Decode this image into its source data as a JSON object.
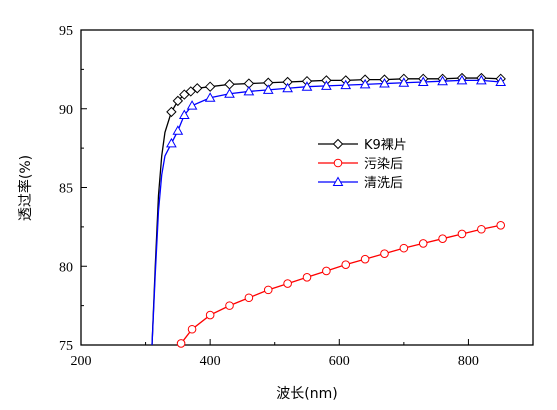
{
  "chart_data": {
    "type": "line",
    "xlabel": "波长(nm)",
    "ylabel": "透过率(%)",
    "xlim": [
      200,
      900
    ],
    "ylim": [
      75,
      95
    ],
    "xticks": [
      200,
      400,
      600,
      800
    ],
    "yticks": [
      75,
      80,
      85,
      90,
      95
    ],
    "legend_position": "center-right",
    "grid": false,
    "series": [
      {
        "name": "K9裸片",
        "color": "#000000",
        "marker": "diamond",
        "x": [
          310,
          315,
          320,
          325,
          330,
          340,
          350,
          360,
          370,
          380,
          400,
          430,
          460,
          490,
          520,
          550,
          580,
          610,
          640,
          670,
          700,
          730,
          760,
          790,
          820,
          850
        ],
        "y": [
          75.0,
          80.0,
          84.5,
          87.0,
          88.5,
          89.8,
          90.5,
          90.9,
          91.1,
          91.3,
          91.4,
          91.55,
          91.6,
          91.65,
          91.7,
          91.75,
          91.8,
          91.8,
          91.85,
          91.85,
          91.9,
          91.9,
          91.9,
          91.95,
          91.95,
          91.9
        ]
      },
      {
        "name": "污染后",
        "color": "#ff0000",
        "marker": "circle",
        "x": [
          355,
          372,
          400,
          430,
          460,
          490,
          520,
          550,
          580,
          610,
          640,
          670,
          700,
          730,
          760,
          790,
          820,
          850
        ],
        "y": [
          75.1,
          76.0,
          76.9,
          77.5,
          78.0,
          78.5,
          78.9,
          79.3,
          79.7,
          80.1,
          80.45,
          80.8,
          81.15,
          81.45,
          81.75,
          82.05,
          82.35,
          82.6
        ]
      },
      {
        "name": "清洗后",
        "color": "#0000ff",
        "marker": "triangle",
        "x": [
          310,
          315,
          320,
          325,
          330,
          340,
          350,
          360,
          372,
          400,
          430,
          460,
          490,
          520,
          550,
          580,
          610,
          640,
          670,
          700,
          730,
          760,
          790,
          820,
          850
        ],
        "y": [
          75.0,
          79.5,
          83.5,
          85.8,
          87.0,
          87.8,
          88.6,
          89.6,
          90.2,
          90.7,
          90.95,
          91.1,
          91.2,
          91.3,
          91.4,
          91.45,
          91.5,
          91.55,
          91.6,
          91.65,
          91.7,
          91.75,
          91.8,
          91.8,
          91.7
        ]
      }
    ]
  }
}
